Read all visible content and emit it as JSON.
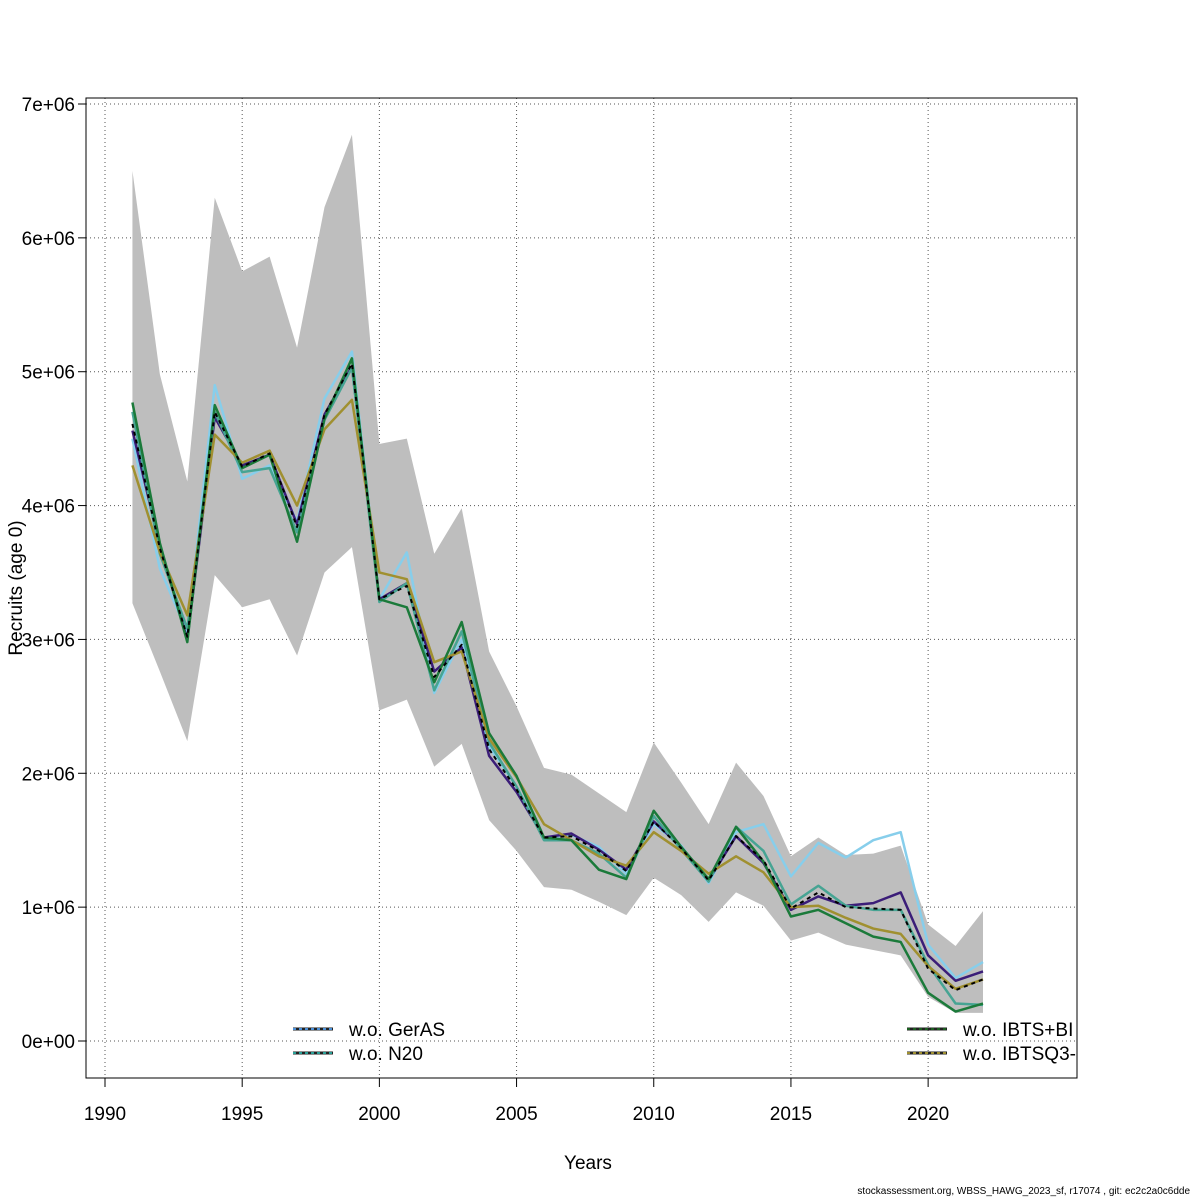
{
  "footer": "stockassessment.org, WBSS_HAWG_2023_sf, r17074 , git: ec2c2a0c6dde",
  "chart_data": {
    "type": "line",
    "title": "",
    "xlabel": "Years",
    "ylabel": "Recruits (age 0)",
    "xlim": [
      1990,
      2023
    ],
    "ylim": [
      -250000,
      7000000
    ],
    "xticks": [
      1990,
      1995,
      2000,
      2005,
      2010,
      2015,
      2020
    ],
    "xtick_labels": [
      "1990",
      "1995",
      "2000",
      "2005",
      "2010",
      "2015",
      "2020"
    ],
    "yticks": [
      0,
      1000000,
      2000000,
      3000000,
      4000000,
      5000000,
      6000000,
      7000000
    ],
    "ytick_labels": [
      "0e+00",
      "1e+06",
      "2e+06",
      "3e+06",
      "4e+06",
      "5e+06",
      "6e+06",
      "7e+06"
    ],
    "grid": true,
    "x": [
      1991,
      1992,
      1993,
      1994,
      1995,
      1996,
      1997,
      1998,
      1999,
      2000,
      2001,
      2002,
      2003,
      2004,
      2005,
      2006,
      2007,
      2008,
      2009,
      2010,
      2011,
      2012,
      2013,
      2014,
      2015,
      2016,
      2017,
      2018,
      2019,
      2020,
      2021,
      2022
    ],
    "band": {
      "color": "#bebebe",
      "upper": [
        6500000,
        4980000,
        4180000,
        6300000,
        5750000,
        5860000,
        5180000,
        6230000,
        6770000,
        4460000,
        4500000,
        3640000,
        3980000,
        2910000,
        2500000,
        2040000,
        1990000,
        1850000,
        1710000,
        2230000,
        1930000,
        1620000,
        2080000,
        1830000,
        1380000,
        1520000,
        1390000,
        1400000,
        1460000,
        870000,
        710000,
        970000
      ],
      "lower": [
        3270000,
        2760000,
        2240000,
        3480000,
        3240000,
        3300000,
        2880000,
        3500000,
        3690000,
        2470000,
        2550000,
        2050000,
        2220000,
        1650000,
        1420000,
        1150000,
        1130000,
        1040000,
        940000,
        1220000,
        1090000,
        890000,
        1110000,
        1010000,
        750000,
        810000,
        720000,
        680000,
        640000,
        330000,
        210000,
        210000
      ]
    },
    "series": [
      {
        "name": "",
        "color": "#87ceeb",
        "dashed": false,
        "values": [
          4500000,
          3530000,
          3050000,
          4900000,
          4200000,
          4300000,
          3880000,
          4800000,
          5150000,
          3300000,
          3650000,
          2600000,
          3000000,
          2200000,
          1900000,
          1520000,
          1540000,
          1450000,
          1250000,
          1620000,
          1460000,
          1180000,
          1560000,
          1620000,
          1230000,
          1480000,
          1370000,
          1500000,
          1560000,
          720000,
          470000,
          590000
        ]
      },
      {
        "name": "",
        "color": "#3b1d78",
        "dashed": false,
        "values": [
          4560000,
          3700000,
          3000000,
          4660000,
          4300000,
          4380000,
          3860000,
          4680000,
          5040000,
          3300000,
          3420000,
          2760000,
          2940000,
          2130000,
          1860000,
          1520000,
          1550000,
          1430000,
          1280000,
          1640000,
          1450000,
          1200000,
          1530000,
          1330000,
          980000,
          1080000,
          1010000,
          1030000,
          1110000,
          640000,
          450000,
          520000
        ]
      },
      {
        "name": "",
        "color": "#46a493",
        "dashed": false,
        "values": [
          4700000,
          3640000,
          3080000,
          4700000,
          4250000,
          4280000,
          3800000,
          4640000,
          5030000,
          3280000,
          3420000,
          2620000,
          3060000,
          2230000,
          1900000,
          1500000,
          1500000,
          1400000,
          1220000,
          1680000,
          1430000,
          1190000,
          1600000,
          1420000,
          1020000,
          1160000,
          1010000,
          980000,
          980000,
          570000,
          280000,
          270000
        ]
      },
      {
        "name": "",
        "color": "#a09030",
        "dashed": false,
        "values": [
          4300000,
          3650000,
          3180000,
          4530000,
          4320000,
          4410000,
          4000000,
          4570000,
          4790000,
          3500000,
          3450000,
          2830000,
          2910000,
          2260000,
          1970000,
          1620000,
          1500000,
          1380000,
          1310000,
          1560000,
          1420000,
          1250000,
          1380000,
          1260000,
          1000000,
          1010000,
          920000,
          840000,
          800000,
          560000,
          390000,
          460000
        ]
      },
      {
        "name": "",
        "color": "#1b7a3a",
        "dashed": false,
        "values": [
          4770000,
          3720000,
          2980000,
          4750000,
          4280000,
          4380000,
          3730000,
          4650000,
          5100000,
          3300000,
          3240000,
          2680000,
          3130000,
          2300000,
          1980000,
          1520000,
          1500000,
          1280000,
          1210000,
          1720000,
          1450000,
          1210000,
          1600000,
          1340000,
          930000,
          980000,
          880000,
          780000,
          740000,
          360000,
          220000,
          280000
        ]
      },
      {
        "name": "",
        "color": "#000000",
        "dashed": true,
        "values": [
          4610000,
          3680000,
          3020000,
          4700000,
          4290000,
          4390000,
          3840000,
          4680000,
          5060000,
          3300000,
          3400000,
          2720000,
          2960000,
          2180000,
          1880000,
          1520000,
          1530000,
          1420000,
          1270000,
          1640000,
          1440000,
          1200000,
          1530000,
          1350000,
          990000,
          1110000,
          1000000,
          990000,
          980000,
          540000,
          380000,
          460000
        ]
      }
    ],
    "legend": {
      "left": [
        {
          "label": "w.o. GerAS",
          "color": "#4a8fd8"
        },
        {
          "label": "w.o. N20",
          "color": "#2aa098"
        }
      ],
      "right": [
        {
          "label": "w.o. IBTS+BI",
          "color": "#1b5e20"
        },
        {
          "label": "w.o. IBTSQ3-",
          "color": "#a09030"
        }
      ]
    }
  }
}
